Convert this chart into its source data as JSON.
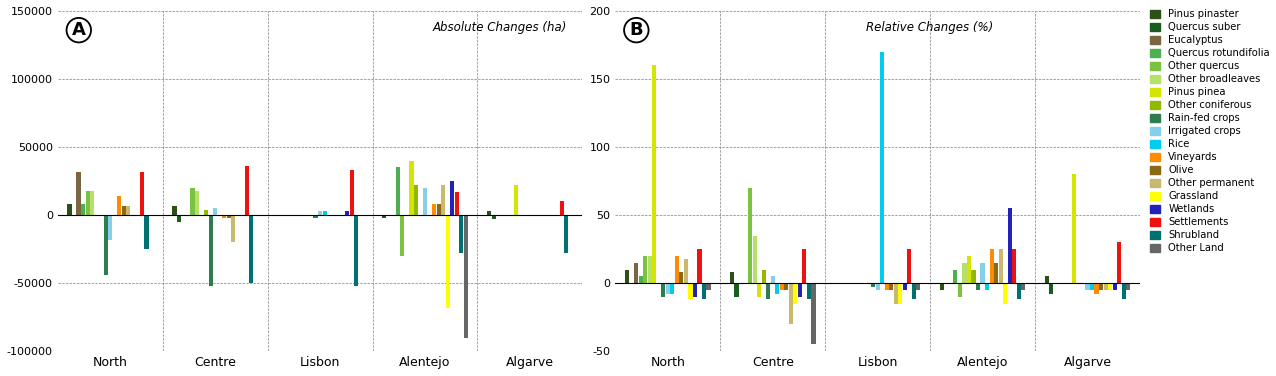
{
  "categories": [
    "North",
    "Centre",
    "Lisbon",
    "Alentejo",
    "Algarve"
  ],
  "legend_labels": [
    "Pinus pinaster",
    "Quercus suber",
    "Eucalyptus",
    "Quercus rotundifolia",
    "Other quercus",
    "Other broadleaves",
    "Pinus pinea",
    "Other coniferous",
    "Rain-fed crops",
    "Irrigated crops",
    "Rice",
    "Vineyards",
    "Olive",
    "Other permanent",
    "Grassland",
    "Wetlands",
    "Settlements",
    "Shrubland",
    "Other Land"
  ],
  "colors": {
    "Pinus pinaster": "#2d5016",
    "Quercus suber": "#1a5c20",
    "Eucalyptus": "#7a6640",
    "Quercus rotundifolia": "#4caf50",
    "Other quercus": "#7bc142",
    "Other broadleaves": "#b5e06a",
    "Pinus pinea": "#d4e600",
    "Other coniferous": "#8fba00",
    "Rain-fed crops": "#2e7d4f",
    "Irrigated crops": "#87ceeb",
    "Rice": "#00ccee",
    "Vineyards": "#ff8c00",
    "Olive": "#8b6914",
    "Other permanent": "#c8b96e",
    "Grassland": "#ffff00",
    "Wetlands": "#2222bb",
    "Settlements": "#ee1111",
    "Shrubland": "#007070",
    "Other Land": "#666666"
  },
  "abs_data": {
    "Pinus pinaster": [
      8000,
      7000,
      0,
      -2000,
      3000
    ],
    "Quercus suber": [
      0,
      -5000,
      0,
      0,
      -3000
    ],
    "Eucalyptus": [
      32000,
      0,
      0,
      0,
      0
    ],
    "Quercus rotundifolia": [
      8000,
      0,
      0,
      35000,
      0
    ],
    "Other quercus": [
      18000,
      20000,
      0,
      -30000,
      0
    ],
    "Other broadleaves": [
      18000,
      18000,
      0,
      0,
      0
    ],
    "Pinus pinea": [
      -1000,
      0,
      0,
      40000,
      22000
    ],
    "Other coniferous": [
      0,
      4000,
      0,
      22000,
      0
    ],
    "Rain-fed crops": [
      -44000,
      -52000,
      -2000,
      0,
      0
    ],
    "Irrigated crops": [
      -18000,
      5000,
      3000,
      20000,
      0
    ],
    "Rice": [
      0,
      0,
      3000,
      0,
      0
    ],
    "Vineyards": [
      14000,
      -2000,
      0,
      8000,
      0
    ],
    "Olive": [
      7000,
      -2000,
      0,
      8000,
      0
    ],
    "Other permanent": [
      7000,
      -20000,
      0,
      22000,
      0
    ],
    "Grassland": [
      0,
      0,
      0,
      -68000,
      0
    ],
    "Wetlands": [
      0,
      0,
      3000,
      25000,
      0
    ],
    "Settlements": [
      32000,
      36000,
      33000,
      17000,
      10000
    ],
    "Shrubland": [
      -25000,
      -50000,
      -52000,
      -28000,
      -28000
    ],
    "Other Land": [
      0,
      0,
      0,
      -90000,
      0
    ]
  },
  "rel_data": {
    "Pinus pinaster": [
      10,
      8,
      0,
      -5,
      5
    ],
    "Quercus suber": [
      0,
      -10,
      0,
      0,
      -8
    ],
    "Eucalyptus": [
      15,
      0,
      0,
      0,
      0
    ],
    "Quercus rotundifolia": [
      5,
      0,
      0,
      10,
      0
    ],
    "Other quercus": [
      20,
      70,
      0,
      -10,
      0
    ],
    "Other broadleaves": [
      20,
      35,
      0,
      15,
      0
    ],
    "Pinus pinea": [
      160,
      -10,
      0,
      20,
      80
    ],
    "Other coniferous": [
      0,
      10,
      0,
      10,
      0
    ],
    "Rain-fed crops": [
      -10,
      -12,
      -3,
      -5,
      0
    ],
    "Irrigated crops": [
      -8,
      5,
      -5,
      15,
      -5
    ],
    "Rice": [
      -8,
      -8,
      170,
      -5,
      -5
    ],
    "Vineyards": [
      20,
      -5,
      -5,
      25,
      -8
    ],
    "Olive": [
      8,
      -5,
      -5,
      15,
      -5
    ],
    "Other permanent": [
      18,
      -30,
      -15,
      25,
      -5
    ],
    "Grassland": [
      -12,
      -15,
      -15,
      -15,
      -5
    ],
    "Wetlands": [
      -10,
      -10,
      -5,
      55,
      -5
    ],
    "Settlements": [
      25,
      25,
      25,
      25,
      30
    ],
    "Shrubland": [
      -12,
      -12,
      -12,
      -12,
      -12
    ],
    "Other Land": [
      -5,
      -45,
      -5,
      -5,
      -5
    ]
  },
  "abs_ylim": [
    -100000,
    150000
  ],
  "abs_yticks": [
    -100000,
    -50000,
    0,
    50000,
    100000,
    150000
  ],
  "rel_ylim": [
    -50,
    200
  ],
  "rel_yticks": [
    -50,
    0,
    50,
    100,
    150,
    200
  ],
  "label_A": "A",
  "label_B": "B",
  "title_A": "Absolute Changes (ha)",
  "title_B": "Relative Changes (%)"
}
